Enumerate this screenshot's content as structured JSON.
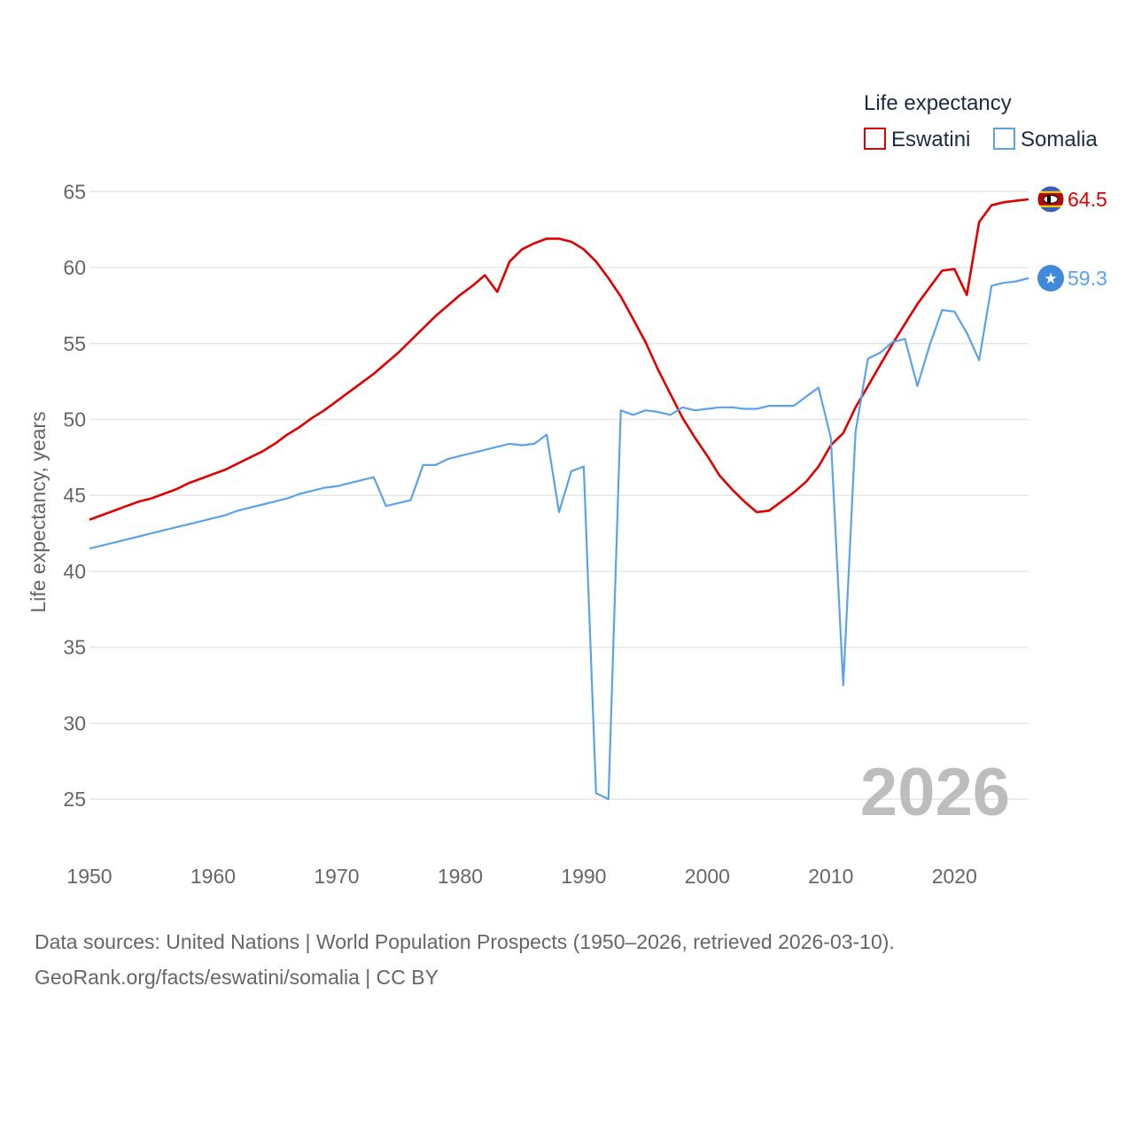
{
  "chart_data": {
    "type": "line",
    "title": "",
    "xlabel": "",
    "ylabel": "Life expectancy, years",
    "xlim": [
      1950,
      2026
    ],
    "ylim": [
      22.5,
      67
    ],
    "x_ticks": [
      1950,
      1960,
      1970,
      1980,
      1990,
      2000,
      2010,
      2020
    ],
    "y_ticks": [
      25,
      30,
      35,
      40,
      45,
      50,
      55,
      60,
      65
    ],
    "grid": true,
    "legend": {
      "title": "Life expectancy",
      "position": "top-right"
    },
    "year_label": "2026",
    "x": [
      1950,
      1951,
      1952,
      1953,
      1954,
      1955,
      1956,
      1957,
      1958,
      1959,
      1960,
      1961,
      1962,
      1963,
      1964,
      1965,
      1966,
      1967,
      1968,
      1969,
      1970,
      1971,
      1972,
      1973,
      1974,
      1975,
      1976,
      1977,
      1978,
      1979,
      1980,
      1981,
      1982,
      1983,
      1984,
      1985,
      1986,
      1987,
      1988,
      1989,
      1990,
      1991,
      1992,
      1993,
      1994,
      1995,
      1996,
      1997,
      1998,
      1999,
      2000,
      2001,
      2002,
      2003,
      2004,
      2005,
      2006,
      2007,
      2008,
      2009,
      2010,
      2011,
      2012,
      2013,
      2014,
      2015,
      2016,
      2017,
      2018,
      2019,
      2020,
      2021,
      2022,
      2023,
      2024,
      2025,
      2026
    ],
    "series": [
      {
        "name": "Eswatini",
        "color": "#e00000",
        "end_label": "64.5",
        "flag_icon": "eswatini-flag-icon",
        "values": [
          43.4,
          43.7,
          44.0,
          44.3,
          44.6,
          44.8,
          45.1,
          45.4,
          45.8,
          46.1,
          46.4,
          46.7,
          47.1,
          47.5,
          47.9,
          48.4,
          49.0,
          49.5,
          50.1,
          50.6,
          51.2,
          51.8,
          52.4,
          53.0,
          53.7,
          54.4,
          55.2,
          56.0,
          56.8,
          57.5,
          58.2,
          58.8,
          59.5,
          58.4,
          60.4,
          61.2,
          61.6,
          61.9,
          61.9,
          61.7,
          61.2,
          60.4,
          59.3,
          58.1,
          56.6,
          55.1,
          53.3,
          51.7,
          50.1,
          48.8,
          47.6,
          46.3,
          45.4,
          44.6,
          43.9,
          44.0,
          44.6,
          45.2,
          45.9,
          46.9,
          48.3,
          49.1,
          50.8,
          52.2,
          53.6,
          55.0,
          56.3,
          57.6,
          58.7,
          59.8,
          59.9,
          58.2,
          63.0,
          64.1,
          64.3,
          64.4,
          64.5
        ]
      },
      {
        "name": "Somalia",
        "color": "#5ba3e6",
        "end_label": "59.3",
        "flag_icon": "somalia-flag-icon",
        "values": [
          41.5,
          41.7,
          41.9,
          42.1,
          42.3,
          42.5,
          42.7,
          42.9,
          43.1,
          43.3,
          43.5,
          43.7,
          44.0,
          44.2,
          44.4,
          44.6,
          44.8,
          45.1,
          45.3,
          45.5,
          45.6,
          45.8,
          46.0,
          46.2,
          44.3,
          44.5,
          44.7,
          47.0,
          47.0,
          47.4,
          47.6,
          47.8,
          48.0,
          48.2,
          48.4,
          48.3,
          48.4,
          49.0,
          43.9,
          46.6,
          46.9,
          25.4,
          25.0,
          50.6,
          50.3,
          50.6,
          50.5,
          50.3,
          50.8,
          50.6,
          50.7,
          50.8,
          50.8,
          50.7,
          50.7,
          50.9,
          50.9,
          50.9,
          51.5,
          52.1,
          48.8,
          32.5,
          49.2,
          54.0,
          54.4,
          55.1,
          55.3,
          52.2,
          54.9,
          57.2,
          57.1,
          55.7,
          53.9,
          58.8,
          59.0,
          59.1,
          59.3
        ]
      }
    ]
  },
  "footer": {
    "sources": "Data sources: United Nations | World Population Prospects (1950–2026, retrieved 2026-03-10).",
    "credit": "GeoRank.org/facts/eswatini/somalia | CC BY"
  }
}
